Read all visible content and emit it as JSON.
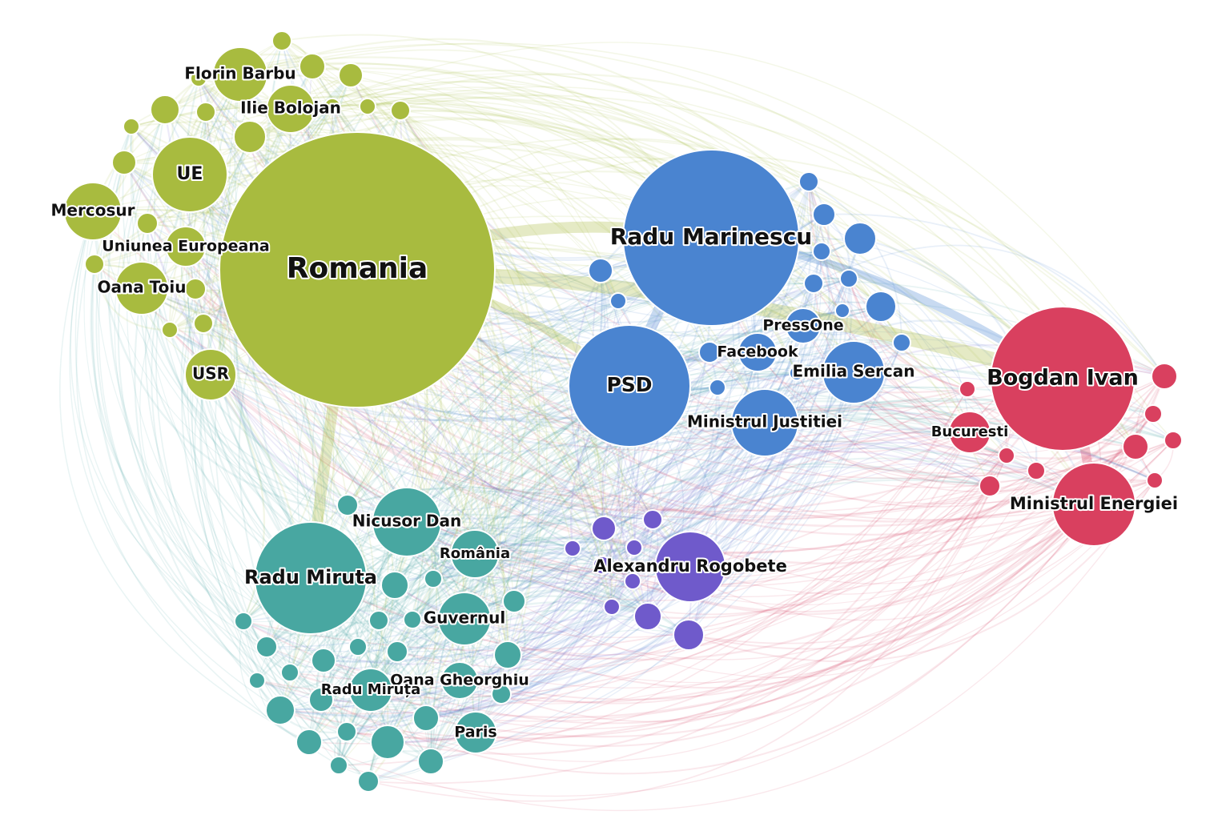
{
  "nodes": [
    {
      "label": "Romania"
    },
    {
      "label": "UE"
    },
    {
      "label": "Florin Barbu"
    },
    {
      "label": "Ilie Bolojan"
    },
    {
      "label": "Mercosur"
    },
    {
      "label": "Uniunea Europeana"
    },
    {
      "label": "Oana Toiu"
    },
    {
      "label": "USR"
    },
    {
      "label": "Radu Marinescu"
    },
    {
      "label": "PSD"
    },
    {
      "label": "PressOne"
    },
    {
      "label": "Facebook"
    },
    {
      "label": "Emilia Sercan"
    },
    {
      "label": "Ministrul Justitiei"
    },
    {
      "label": "Bogdan Ivan"
    },
    {
      "label": "Bucuresti"
    },
    {
      "label": "Ministrul Energiei"
    },
    {
      "label": "Nicusor Dan"
    },
    {
      "label": "Radu Miruta"
    },
    {
      "label": "România"
    },
    {
      "label": "Guvernul"
    },
    {
      "label": "Oana Gheorghiu"
    },
    {
      "label": "Radu Miruța"
    },
    {
      "label": "Paris"
    },
    {
      "label": "Alexandru Rogobete"
    }
  ]
}
